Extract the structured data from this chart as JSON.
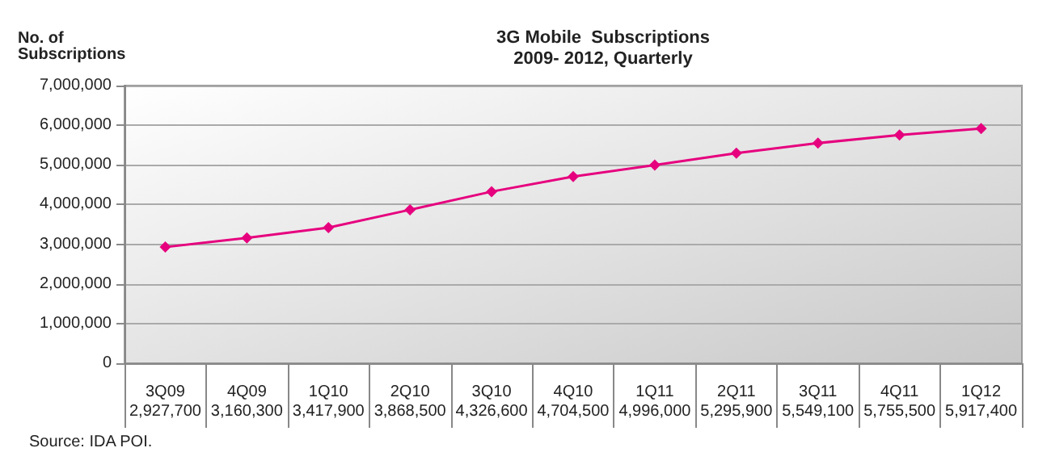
{
  "chart_data": {
    "type": "line",
    "title": "3G Mobile  Subscriptions\n2009- 2012, Quarterly",
    "ylabel": "No. of\nSubscriptions",
    "categories": [
      "3Q09",
      "4Q09",
      "1Q10",
      "2Q10",
      "3Q10",
      "4Q10",
      "1Q11",
      "2Q11",
      "3Q11",
      "4Q11",
      "1Q12"
    ],
    "series": [
      {
        "color": "#e6007e",
        "values": [
          2927700,
          3160300,
          3417900,
          3868500,
          4326600,
          4704500,
          4996000,
          5295900,
          5549100,
          5755500,
          5917400
        ],
        "value_labels": [
          "2,927,700",
          "3,160,300",
          "3,417,900",
          "3,868,500",
          "4,326,600",
          "4,704,500",
          "4,996,000",
          "5,295,900",
          "5,549,100",
          "5,755,500",
          "5,917,400"
        ]
      }
    ],
    "ylim": [
      0,
      7000000
    ],
    "yticks": [
      0,
      {
        "value": 1000000,
        "label": "1,000,000"
      },
      {
        "value": 2000000,
        "label": "2,000,000"
      },
      {
        "value": 3000000,
        "label": "3,000,000"
      },
      {
        "value": 4000000,
        "label": "4,000,000"
      },
      {
        "value": 5000000,
        "label": "5,000,000"
      },
      {
        "value": 6000000,
        "label": "6,000,000"
      },
      {
        "value": 7000000,
        "label": "7,000,000"
      }
    ],
    "grid": "y",
    "marker": "diamond",
    "line_style": "solid",
    "annotations": [
      "Source: IDA POI."
    ]
  }
}
